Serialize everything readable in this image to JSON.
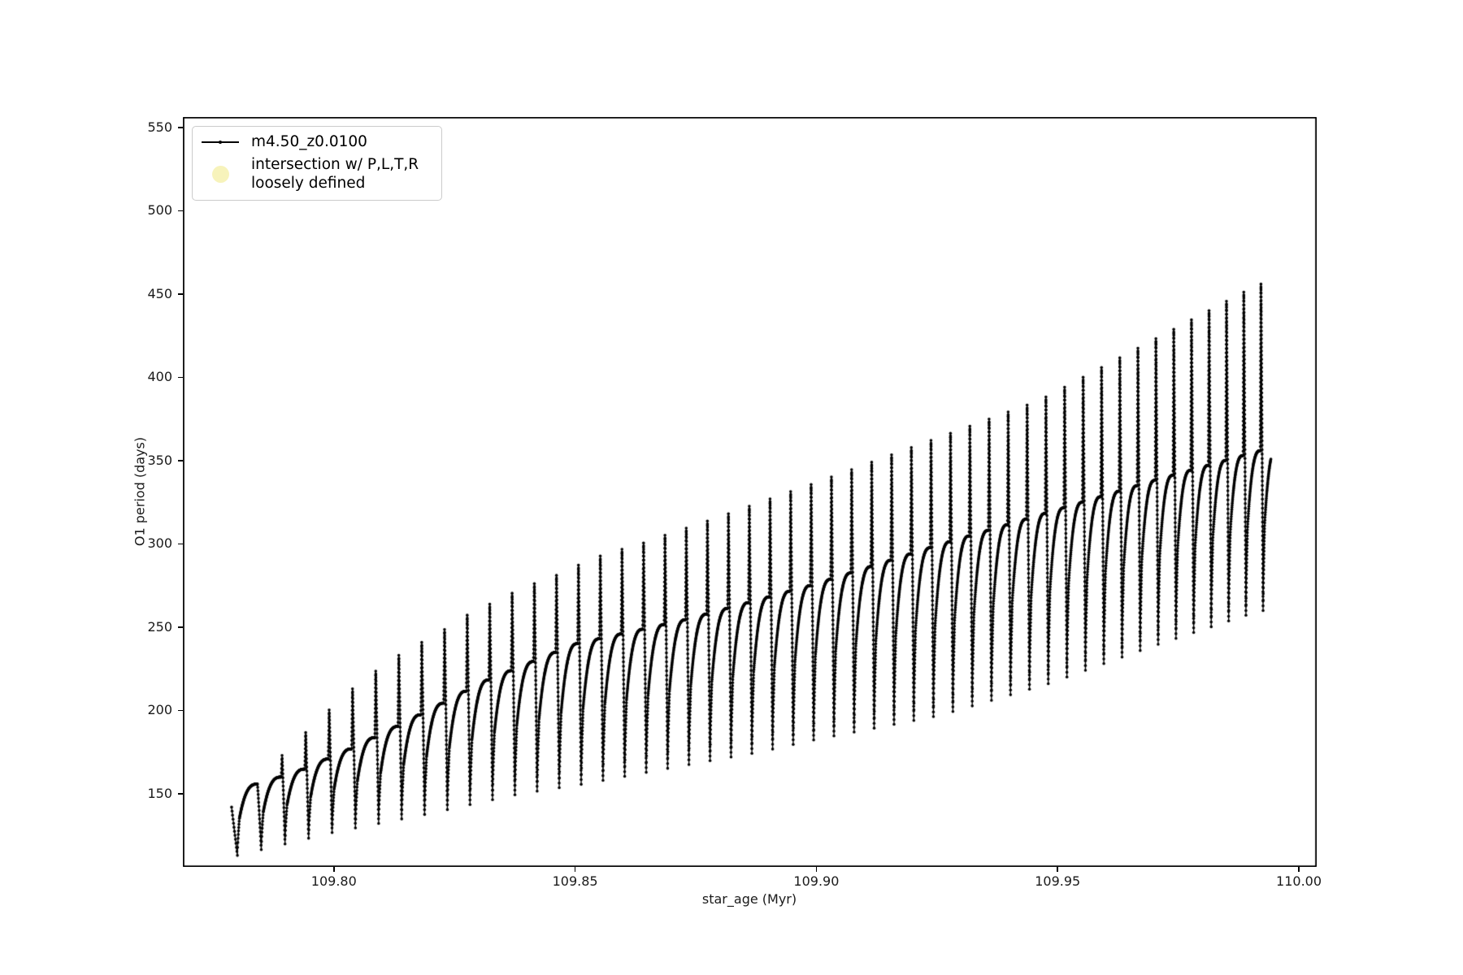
{
  "figure": {
    "background": "#ffffff",
    "data_color": "#000000"
  },
  "axes": {
    "xlabel": "star_age (Myr)",
    "ylabel": "O1 period (days)",
    "xlim": [
      109.7687,
      110.0037
    ],
    "ylim": [
      106.1,
      556.3
    ],
    "x_ticks": [
      {
        "label": "109.80",
        "value": 109.8
      },
      {
        "label": "109.85",
        "value": 109.85
      },
      {
        "label": "109.90",
        "value": 109.9
      },
      {
        "label": "109.95",
        "value": 109.95
      },
      {
        "label": "110.00",
        "value": 110.0
      }
    ],
    "y_ticks": [
      {
        "label": "150",
        "value": 150
      },
      {
        "label": "200",
        "value": 200
      },
      {
        "label": "250",
        "value": 250
      },
      {
        "label": "300",
        "value": 300
      },
      {
        "label": "350",
        "value": 350
      },
      {
        "label": "400",
        "value": 400
      },
      {
        "label": "450",
        "value": 450
      },
      {
        "label": "500",
        "value": 500
      },
      {
        "label": "550",
        "value": 550
      }
    ]
  },
  "legend": {
    "entries": [
      {
        "label": "m4.50_z0.0100",
        "marker": "line-with-dot",
        "color": "#000000"
      },
      {
        "label": "intersection w/ P,L,T,R\nloosely defined",
        "marker": "filled-circle",
        "color": "#f7f3bb"
      }
    ]
  },
  "chart_data": {
    "type": "line",
    "title": "",
    "xlabel": "star_age (Myr)",
    "ylabel": "O1 period (days)",
    "xlim": [
      109.7687,
      110.0037
    ],
    "ylim": [
      106.1,
      556.3
    ],
    "grid": false,
    "legend_position": "upper left",
    "series_name": "m4.50_z0.0100",
    "description": "Sawtooth pulsation cycles: each cycle has a deep minimum, a flattening arc rise, a tall upward spike, then a plunge to the next minimum. Envelopes below give values read from the figure (Myr, days).",
    "series_model": {
      "t_first": 109.7788,
      "v_first": 142,
      "t_min0": 109.78,
      "n_cycles": 51,
      "period_start": 0.00495,
      "period_step": -2.85e-05,
      "spike_phase": 0.84,
      "recovery_frac": 0.085,
      "base_frac": 0.52,
      "arc_ease": 2.8,
      "spike_rise_frac": 0.035,
      "first_spike_cycle": 1,
      "t_end": 109.9942,
      "max_dv": 2.6,
      "max_dt": 3.5e-05,
      "marker_radius": 1.8,
      "line_width": 1.3,
      "min_envelope": [
        [
          109.78,
          113
        ],
        [
          109.8,
          127
        ],
        [
          109.8195,
          138
        ],
        [
          109.8385,
          150
        ],
        [
          109.852,
          156
        ],
        [
          109.8705,
          166
        ],
        [
          109.888,
          175
        ],
        [
          109.9005,
          183
        ],
        [
          109.9255,
          197
        ],
        [
          109.948,
          216
        ],
        [
          109.969,
          238
        ],
        [
          109.992,
          260
        ]
      ],
      "top_envelope": [
        [
          109.78,
          150
        ],
        [
          109.7832,
          155
        ],
        [
          109.7925,
          163
        ],
        [
          109.803,
          176
        ],
        [
          109.813,
          190
        ],
        [
          109.8225,
          204
        ],
        [
          109.831,
          217
        ],
        [
          109.8503,
          240
        ],
        [
          109.8737,
          255
        ],
        [
          109.9,
          276
        ],
        [
          109.925,
          299
        ],
        [
          109.946,
          317
        ],
        [
          109.97,
          338
        ],
        [
          109.9945,
          358
        ]
      ],
      "peak_envelope": [
        [
          109.7845,
          160
        ],
        [
          109.788,
          170
        ],
        [
          109.793,
          184
        ],
        [
          109.798,
          198
        ],
        [
          109.8028,
          211
        ],
        [
          109.8077,
          222
        ],
        [
          109.8126,
          232
        ],
        [
          109.8175,
          240
        ],
        [
          109.8224,
          248
        ],
        [
          109.8273,
          257
        ],
        [
          109.8322,
          264
        ],
        [
          109.8372,
          271
        ],
        [
          109.842,
          277
        ],
        [
          109.8468,
          282
        ],
        [
          109.8517,
          289
        ],
        [
          109.8562,
          294
        ],
        [
          109.861,
          298
        ],
        [
          109.8657,
          302
        ],
        [
          109.87,
          307
        ],
        [
          109.8746,
          311
        ],
        [
          109.9,
          337
        ],
        [
          109.9244,
          363
        ],
        [
          109.946,
          386
        ],
        [
          109.9916,
          456
        ]
      ]
    }
  }
}
